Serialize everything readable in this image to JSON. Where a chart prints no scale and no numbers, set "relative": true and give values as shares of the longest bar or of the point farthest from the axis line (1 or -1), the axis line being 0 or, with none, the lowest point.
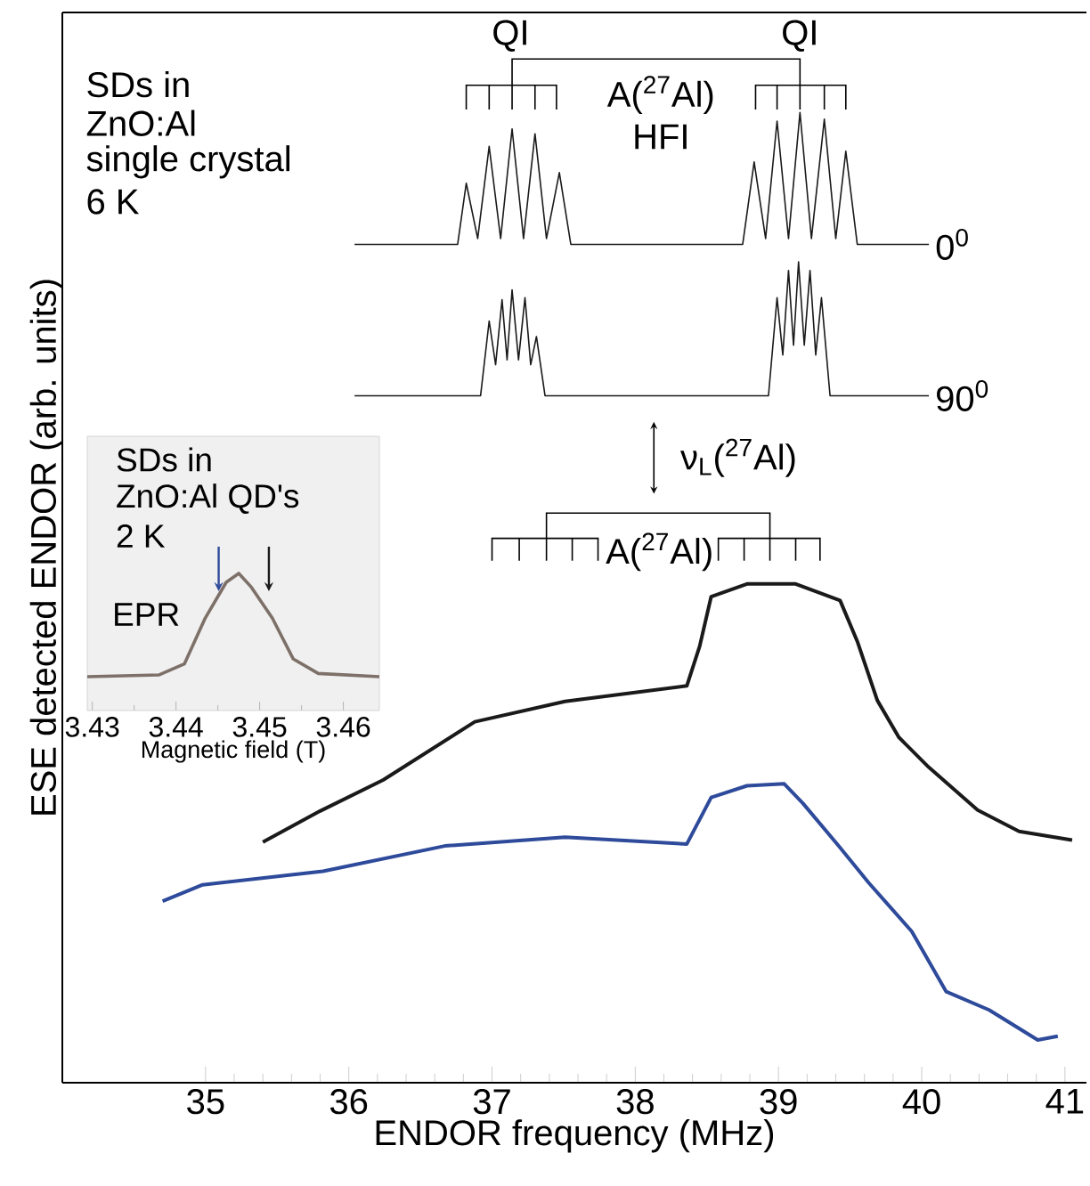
{
  "chart_data": [
    {
      "type": "line",
      "relative": true,
      "xlabel": "ENDOR frequency (MHz)",
      "ylabel": "ESE detected ENDOR (arb. units)",
      "xlim": [
        34,
        41.15
      ],
      "xticks": [
        35,
        36,
        37,
        38,
        39,
        40,
        41
      ],
      "annotations": [
        "SDs in",
        "ZnO:Al",
        "single crystal",
        "6 K",
        "QI",
        "QI",
        "A($^{27}$Al)",
        "HFI",
        "ν$_{L}$($^{27}$Al)",
        "A($^{27}$Al)"
      ],
      "series": [
        {
          "name": "0$^{0}$",
          "color": "#1a1a1a",
          "x": [
            36.04,
            36.76,
            36.82,
            36.9,
            36.98,
            37.06,
            37.14,
            37.22,
            37.3,
            37.38,
            37.47,
            37.55,
            38.75,
            38.83,
            38.91,
            38.99,
            39.07,
            39.15,
            39.23,
            39.32,
            39.4,
            39.47,
            39.55,
            40.05
          ],
          "values": [
            0.864,
            0.864,
            0.927,
            0.87,
            0.965,
            0.87,
            0.983,
            0.87,
            0.978,
            0.87,
            0.938,
            0.864,
            0.864,
            0.949,
            0.87,
            0.991,
            0.87,
            1,
            0.87,
            0.993,
            0.87,
            0.96,
            0.864,
            0.864
          ]
        },
        {
          "name": "90$^{0}$",
          "color": "#1a1a1a",
          "x": [
            36.04,
            36.92,
            36.98,
            37.025,
            37.07,
            37.105,
            37.14,
            37.185,
            37.23,
            37.27,
            37.31,
            37.37,
            38.93,
            38.99,
            39.03,
            39.07,
            39.105,
            39.14,
            39.18,
            39.22,
            39.26,
            39.3,
            39.36,
            40.05
          ],
          "values": [
            0.708,
            0.708,
            0.785,
            0.74,
            0.807,
            0.745,
            0.817,
            0.745,
            0.809,
            0.74,
            0.769,
            0.708,
            0.708,
            0.809,
            0.75,
            0.837,
            0.76,
            0.846,
            0.76,
            0.837,
            0.75,
            0.809,
            0.708,
            0.708
          ]
        },
        {
          "color": "#1a1a1a",
          "x": [
            35.4,
            35.8,
            36.24,
            36.88,
            37.51,
            38.36,
            38.45,
            38.53,
            38.78,
            39.12,
            39.43,
            39.55,
            39.69,
            39.84,
            40.05,
            40.39,
            40.68,
            41.05
          ],
          "values": [
            0.248,
            0.28,
            0.312,
            0.372,
            0.393,
            0.409,
            0.45,
            0.501,
            0.514,
            0.514,
            0.497,
            0.455,
            0.394,
            0.356,
            0.325,
            0.281,
            0.259,
            0.25
          ]
        },
        {
          "color": "#2e4a9a",
          "x": [
            34.7,
            34.98,
            35.82,
            36.67,
            37.51,
            38.36,
            38.53,
            38.78,
            39.04,
            39.17,
            39.42,
            39.63,
            39.93,
            40.17,
            40.47,
            40.81,
            40.95
          ],
          "values": [
            0.187,
            0.204,
            0.218,
            0.244,
            0.253,
            0.246,
            0.294,
            0.306,
            0.308,
            0.288,
            0.244,
            0.206,
            0.156,
            0.094,
            0.075,
            0.044,
            0.048
          ]
        }
      ]
    },
    {
      "type": "line",
      "relative": true,
      "xlabel": "Magnetic field (T)",
      "xlim": [
        3.4294,
        3.4643
      ],
      "xticks": [
        3.43,
        3.44,
        3.45,
        3.46
      ],
      "annotations": [
        "SDs in",
        "ZnO:Al QD's",
        "2 K",
        "EPR"
      ],
      "series": [
        {
          "color": "#7d7068",
          "x": [
            3.4294,
            3.438,
            3.441,
            3.4435,
            3.446,
            3.4475,
            3.449,
            3.4515,
            3.454,
            3.457,
            3.4643
          ],
          "values": [
            0.247,
            0.26,
            0.34,
            0.675,
            0.935,
            1.0,
            0.9,
            0.675,
            0.377,
            0.27,
            0.247
          ]
        }
      ]
    }
  ]
}
